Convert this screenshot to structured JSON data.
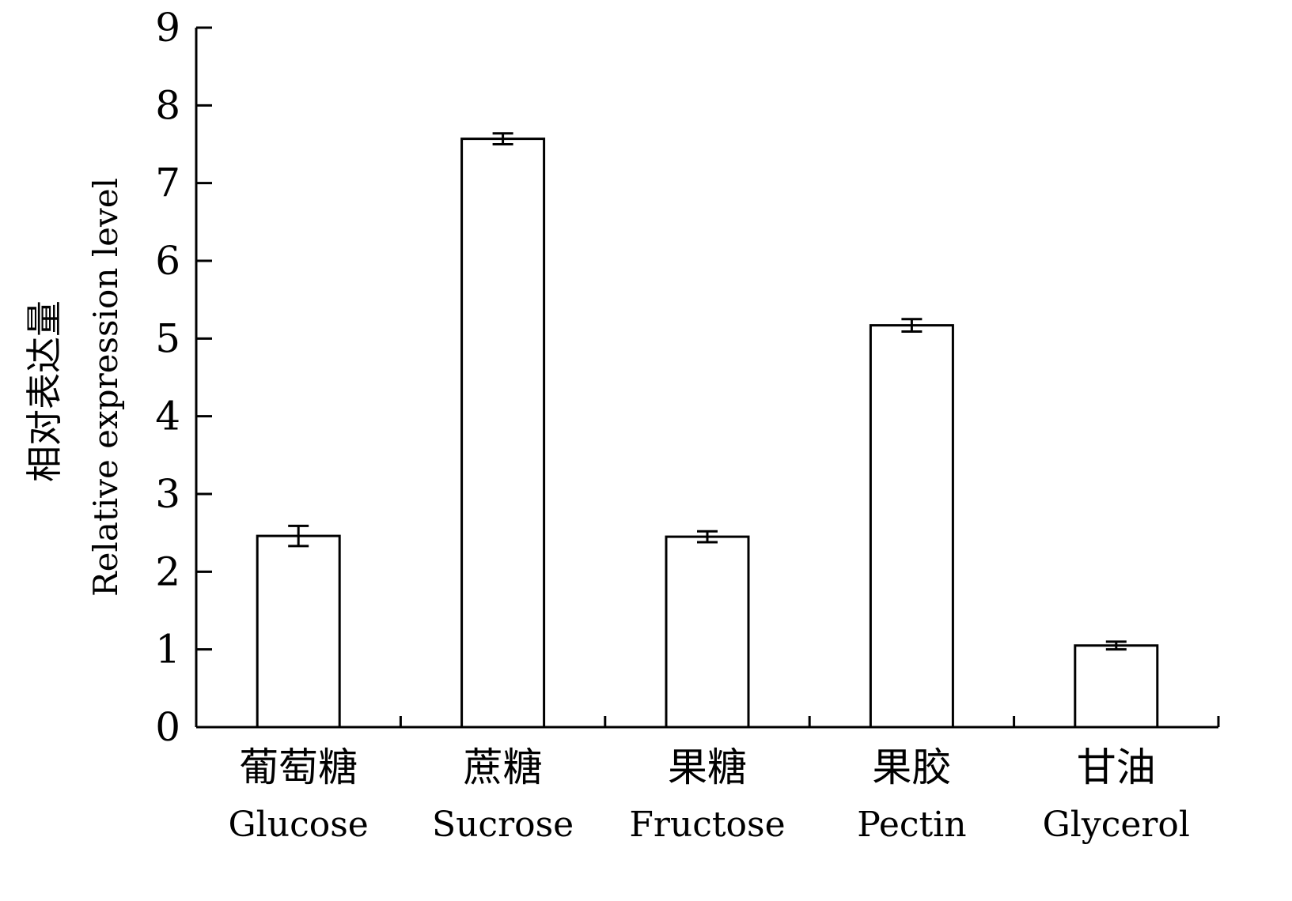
{
  "chart_data": {
    "type": "bar",
    "categories": [
      {
        "cn": "葡萄糖",
        "en": "Glucose"
      },
      {
        "cn": "蔗糖",
        "en": "Sucrose"
      },
      {
        "cn": "果糖",
        "en": "Fructose"
      },
      {
        "cn": "果胶",
        "en": "Pectin"
      },
      {
        "cn": "甘油",
        "en": "Glycerol"
      }
    ],
    "values": [
      2.46,
      7.57,
      2.45,
      5.17,
      1.05
    ],
    "errors": [
      0.13,
      0.07,
      0.07,
      0.08,
      0.05
    ],
    "ylabel_cn": "相对表达量",
    "ylabel_en": "Relative expression level",
    "ylim": [
      0,
      9
    ],
    "yticks": [
      0,
      1,
      2,
      3,
      4,
      5,
      6,
      7,
      8,
      9
    ],
    "grid": false,
    "bar_fill": "#ffffff",
    "bar_stroke": "#000000"
  }
}
